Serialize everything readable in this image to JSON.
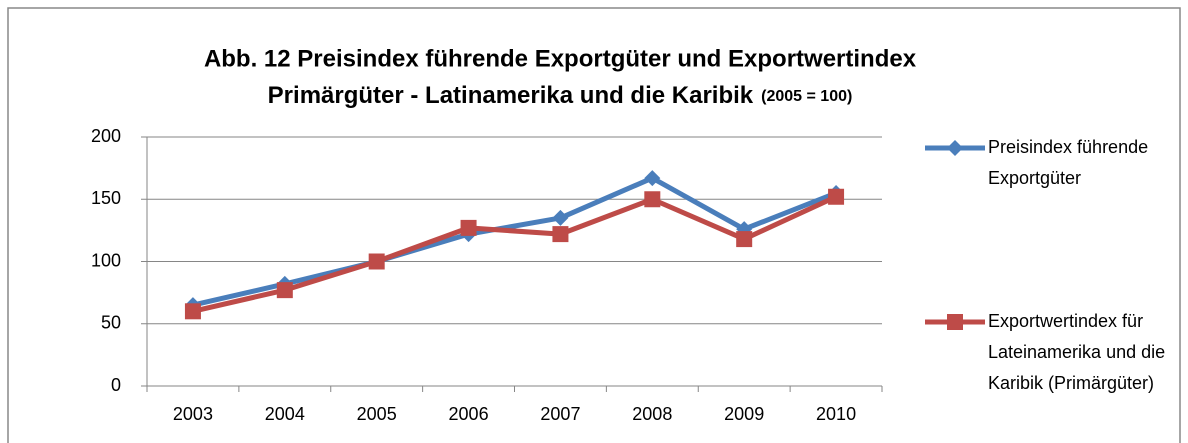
{
  "chart_data": {
    "type": "line",
    "title": [
      "Abb. 12 Preisindex führende Exportgüter und Exportwertindex",
      "Primärgüter - Latinamerika und die Karibik"
    ],
    "subtitle": "(2005 = 100)",
    "categories": [
      "2003",
      "2004",
      "2005",
      "2006",
      "2007",
      "2008",
      "2009",
      "2010"
    ],
    "series": [
      {
        "name": "Preisindex führende Exportgüter",
        "color": "#4a7ebb",
        "marker": "diamond",
        "values": [
          65,
          82,
          100,
          122,
          135,
          167,
          126,
          155
        ]
      },
      {
        "name": "Exportwertindex für Lateinamerika und die Karibik (Primärgüter)",
        "color": "#be4b48",
        "marker": "square",
        "values": [
          60,
          77,
          100,
          127,
          122,
          150,
          118,
          152
        ]
      }
    ],
    "ylim": [
      0,
      200
    ],
    "yticks": [
      0,
      50,
      100,
      150,
      200
    ],
    "grid": true,
    "legend": "right"
  }
}
